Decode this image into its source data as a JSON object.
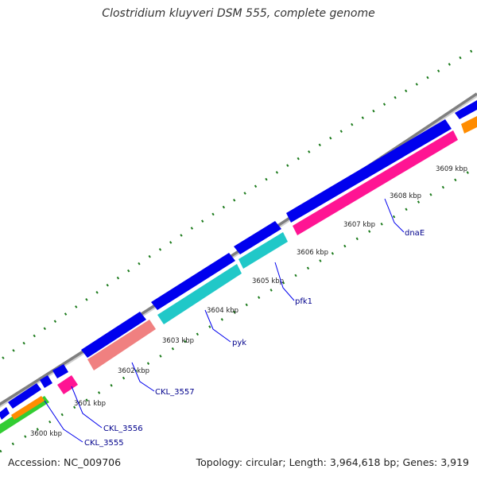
{
  "title": "Clostridium kluyveri DSM 555, complete genome",
  "footer": {
    "accession": "Accession: NC_009706",
    "summary": "Topology: circular; Length: 3,964,618 bp; Genes: 3,919"
  },
  "ticks": [
    {
      "label": "3600 kbp"
    },
    {
      "label": "3601 kbp"
    },
    {
      "label": "3602 kbp"
    },
    {
      "label": "3603 kbp"
    },
    {
      "label": "3604 kbp"
    },
    {
      "label": "3605 kbp"
    },
    {
      "label": "3606 kbp"
    },
    {
      "label": "3607 kbp"
    },
    {
      "label": "3608 kbp"
    },
    {
      "label": "3609 kbp"
    }
  ],
  "gene_labels": [
    {
      "label": "CKL_3555"
    },
    {
      "label": "CKL_3556"
    },
    {
      "label": "CKL_3557"
    },
    {
      "label": "pyk"
    },
    {
      "label": "pfk1"
    },
    {
      "label": "dnaE"
    }
  ],
  "colors": {
    "backbone": "#7f7f7f",
    "cds_forward": "#0000ee",
    "pink": "#ff1493",
    "salmon": "#f08080",
    "cyan": "#20c8c8",
    "orange": "#ff8c00",
    "green": "#32cd32",
    "tick": "#1a7a1a",
    "label": "#00008b"
  }
}
